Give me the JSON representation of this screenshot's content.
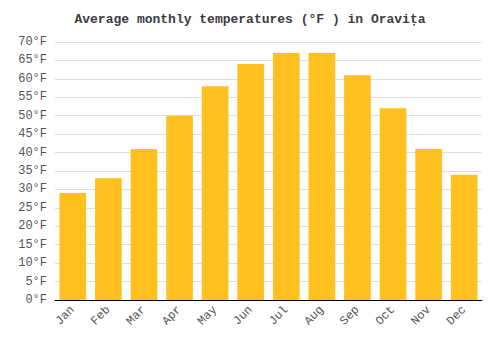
{
  "chart_data": {
    "type": "bar",
    "title": "Average monthly temperatures (°F ) in Oravița",
    "categories": [
      "Jan",
      "Feb",
      "Mar",
      "Apr",
      "May",
      "Jun",
      "Jul",
      "Aug",
      "Sep",
      "Oct",
      "Nov",
      "Dec"
    ],
    "values": [
      29,
      33,
      41,
      50,
      58,
      64,
      67,
      67,
      61,
      52,
      41,
      34
    ],
    "color": "#FFC020",
    "ylim": [
      0,
      70
    ],
    "yticks": [
      {
        "value": 0,
        "label": "0°F"
      },
      {
        "value": 5,
        "label": "5°F"
      },
      {
        "value": 10,
        "label": "10°F"
      },
      {
        "value": 15,
        "label": "15°F"
      },
      {
        "value": 20,
        "label": "20°F"
      },
      {
        "value": 25,
        "label": "25°F"
      },
      {
        "value": 30,
        "label": "30°F"
      },
      {
        "value": 35,
        "label": "35°F"
      },
      {
        "value": 40,
        "label": "40°F"
      },
      {
        "value": 45,
        "label": "45°F"
      },
      {
        "value": 50,
        "label": "50°F"
      },
      {
        "value": 55,
        "label": "55°F"
      },
      {
        "value": 60,
        "label": "60°F"
      },
      {
        "value": 65,
        "label": "65°F"
      },
      {
        "value": 70,
        "label": "70°F"
      }
    ],
    "grid": true
  }
}
